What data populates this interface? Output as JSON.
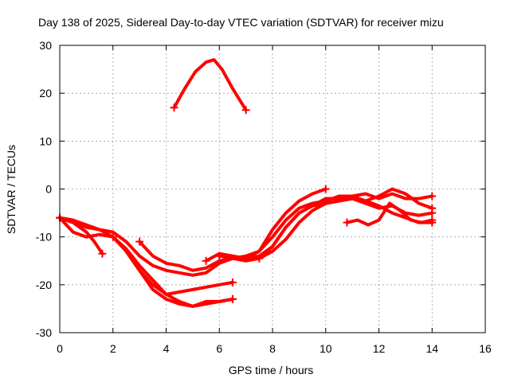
{
  "chart_data": {
    "type": "line",
    "title": "Day 138 of 2025, Sidereal Day-to-day VTEC variation (SDTVAR) for receiver mizu",
    "xlabel": "GPS time / hours",
    "ylabel": "SDTVAR / TECUs",
    "xlim": [
      0,
      16
    ],
    "ylim": [
      -30,
      30
    ],
    "xticks": [
      "0",
      "2",
      "4",
      "6",
      "8",
      "10",
      "12",
      "14",
      "16"
    ],
    "yticks": [
      "30",
      "20",
      "10",
      "0",
      "-10",
      "-20",
      "-30"
    ],
    "grid": true,
    "series_color": "#ff0000",
    "series": [
      {
        "name": "arc-high",
        "x": [
          4.3,
          4.7,
          5.1,
          5.5,
          5.8,
          6.1,
          6.5,
          7.0
        ],
        "y": [
          17,
          21,
          24.5,
          26.5,
          27,
          25,
          21,
          16.5
        ]
      },
      {
        "name": "arc-start-short",
        "x": [
          0.0,
          0.5,
          1.0,
          1.3,
          1.6
        ],
        "y": [
          -6,
          -7,
          -9,
          -11,
          -13.5
        ]
      },
      {
        "name": "arc-low-a",
        "x": [
          0.0,
          0.5,
          1.0,
          1.5,
          2.0,
          2.5,
          3.0,
          3.5,
          4.0,
          4.5,
          5.0,
          5.5,
          6.0,
          6.5
        ],
        "y": [
          -6,
          -6.5,
          -7.5,
          -8.5,
          -10,
          -13,
          -17,
          -21,
          -23,
          -24,
          -24.5,
          -24,
          -23.5,
          -23
        ]
      },
      {
        "name": "arc-low-b",
        "x": [
          2.0,
          2.5,
          3.0,
          3.5,
          4.0,
          4.5,
          5.0,
          5.5,
          6.0,
          6.5
        ],
        "y": [
          -10,
          -13,
          -17,
          -20,
          -22,
          -23.5,
          -24.5,
          -23.5,
          -23.5,
          -23
        ]
      },
      {
        "name": "arc-c",
        "x": [
          0.0,
          0.5,
          1.0,
          1.5,
          2.0,
          2.5,
          3.0,
          3.5,
          4.0,
          4.5,
          5.0,
          5.5,
          6.0,
          6.5
        ],
        "y": [
          -6,
          -9,
          -10,
          -9.5,
          -10,
          -12.5,
          -16,
          -19,
          -22,
          -21.5,
          -21,
          -20.5,
          -20,
          -19.5
        ]
      },
      {
        "name": "arc-d",
        "x": [
          0.0,
          1.0,
          2.0,
          2.5,
          3.0,
          3.5,
          4.0,
          4.5,
          5.0,
          5.5,
          6.0,
          6.5,
          7.0,
          7.5,
          8.0,
          8.5,
          9.0,
          9.5,
          10.0,
          10.5,
          11.0,
          11.5,
          12.0,
          12.5,
          13.0,
          13.5,
          14.0
        ],
        "y": [
          -6,
          -8,
          -9,
          -11,
          -14,
          -16,
          -17,
          -17.5,
          -18,
          -17.5,
          -15.5,
          -14.5,
          -14,
          -13,
          -10,
          -6.5,
          -4,
          -3,
          -2.5,
          -1.5,
          -1.5,
          -2.5,
          -3.5,
          -5,
          -6,
          -7,
          -7
        ]
      },
      {
        "name": "arc-e",
        "x": [
          3.0,
          3.5,
          4.0,
          4.5,
          5.0,
          5.5,
          6.0,
          6.5,
          7.0,
          7.5,
          8.0,
          8.5,
          9.0,
          9.5,
          10.0,
          10.5,
          11.0,
          11.5,
          12.0,
          12.5,
          13.0,
          13.5,
          14.0
        ],
        "y": [
          -11,
          -14,
          -15.5,
          -16,
          -17,
          -16.5,
          -15,
          -14.5,
          -14.5,
          -14,
          -12,
          -8,
          -5,
          -3.5,
          -2,
          -2,
          -1.5,
          -1,
          -2,
          -1,
          -2,
          -2,
          -1.5
        ]
      },
      {
        "name": "arc-f",
        "x": [
          5.5,
          6.0,
          6.5,
          7.0,
          7.5,
          8.0,
          8.5,
          9.0,
          9.5,
          10.0
        ],
        "y": [
          -15,
          -13.5,
          -14,
          -14.5,
          -13,
          -8.5,
          -5,
          -2.5,
          -1,
          0
        ]
      },
      {
        "name": "arc-g",
        "x": [
          6.0,
          6.5,
          7.0,
          7.5,
          8.0,
          8.5,
          9.0,
          9.5,
          10.0,
          10.5,
          11.0,
          11.5,
          12.0,
          12.5,
          13.0,
          13.5,
          14.0
        ],
        "y": [
          -14,
          -14.5,
          -15,
          -14.5,
          -12,
          -8,
          -5,
          -3.5,
          -3,
          -2.5,
          -2,
          -2.5,
          -1.5,
          0,
          -1,
          -3,
          -4
        ]
      },
      {
        "name": "arc-h",
        "x": [
          7.5,
          8.0,
          8.5,
          9.0,
          9.5,
          10.0,
          10.5,
          11.0,
          11.5,
          12.0,
          12.5,
          13.0,
          13.5,
          14.0
        ],
        "y": [
          -14.5,
          -13,
          -10.5,
          -7,
          -4.5,
          -3,
          -2.5,
          -2,
          -3,
          -4,
          -3.5,
          -5,
          -5.5,
          -5
        ]
      },
      {
        "name": "arc-i",
        "x": [
          10.8,
          11.2,
          11.6,
          12.0,
          12.4,
          12.8,
          13.2,
          13.6,
          14.0
        ],
        "y": [
          -7,
          -6.5,
          -7.5,
          -6.5,
          -3,
          -4.5,
          -6.5,
          -7,
          -6.5
        ]
      }
    ]
  }
}
